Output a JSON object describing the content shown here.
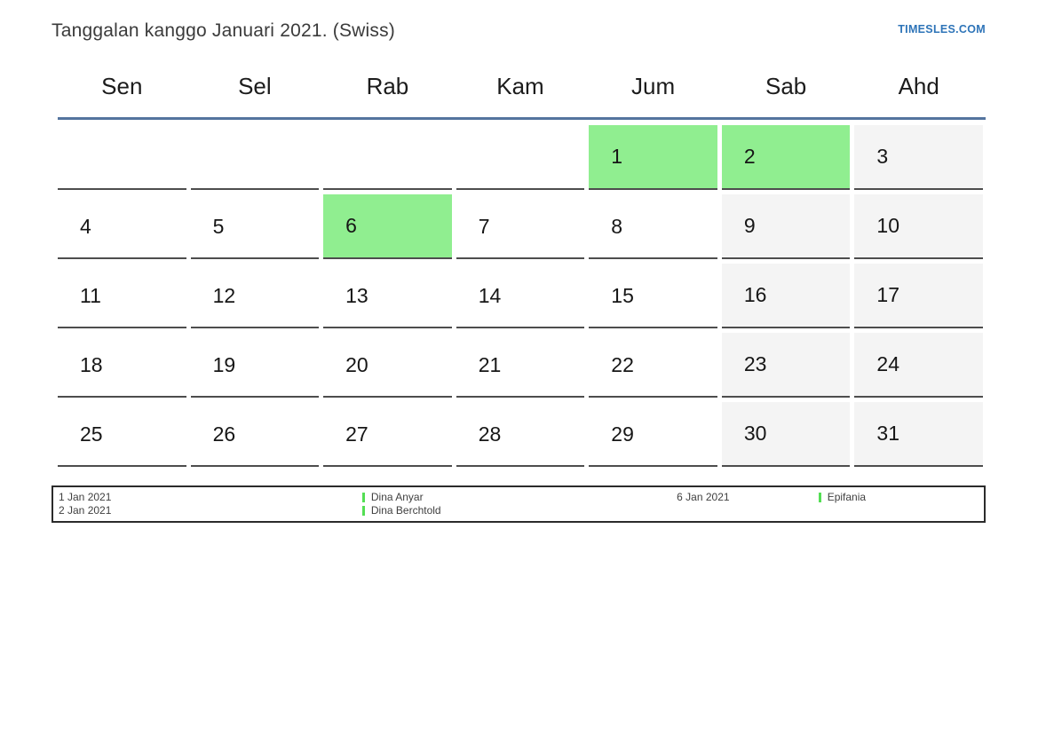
{
  "header": {
    "title": "Tanggalan kanggo Januari 2021. (Swiss)",
    "site_link": "TIMESLES.COM"
  },
  "calendar": {
    "weekday_headers": [
      "Sen",
      "Sel",
      "Rab",
      "Kam",
      "Jum",
      "Sab",
      "Ahd"
    ],
    "weeks": [
      [
        {
          "day": "",
          "type": "empty"
        },
        {
          "day": "",
          "type": "empty"
        },
        {
          "day": "",
          "type": "empty"
        },
        {
          "day": "",
          "type": "empty"
        },
        {
          "day": "1",
          "type": "holiday"
        },
        {
          "day": "2",
          "type": "holiday"
        },
        {
          "day": "3",
          "type": "weekend"
        }
      ],
      [
        {
          "day": "4",
          "type": "weekday"
        },
        {
          "day": "5",
          "type": "weekday"
        },
        {
          "day": "6",
          "type": "holiday"
        },
        {
          "day": "7",
          "type": "weekday"
        },
        {
          "day": "8",
          "type": "weekday"
        },
        {
          "day": "9",
          "type": "weekend"
        },
        {
          "day": "10",
          "type": "weekend"
        }
      ],
      [
        {
          "day": "11",
          "type": "weekday"
        },
        {
          "day": "12",
          "type": "weekday"
        },
        {
          "day": "13",
          "type": "weekday"
        },
        {
          "day": "14",
          "type": "weekday"
        },
        {
          "day": "15",
          "type": "weekday"
        },
        {
          "day": "16",
          "type": "weekend"
        },
        {
          "day": "17",
          "type": "weekend"
        }
      ],
      [
        {
          "day": "18",
          "type": "weekday"
        },
        {
          "day": "19",
          "type": "weekday"
        },
        {
          "day": "20",
          "type": "weekday"
        },
        {
          "day": "21",
          "type": "weekday"
        },
        {
          "day": "22",
          "type": "weekday"
        },
        {
          "day": "23",
          "type": "weekend"
        },
        {
          "day": "24",
          "type": "weekend"
        }
      ],
      [
        {
          "day": "25",
          "type": "weekday"
        },
        {
          "day": "26",
          "type": "weekday"
        },
        {
          "day": "27",
          "type": "weekday"
        },
        {
          "day": "28",
          "type": "weekday"
        },
        {
          "day": "29",
          "type": "weekday"
        },
        {
          "day": "30",
          "type": "weekend"
        },
        {
          "day": "31",
          "type": "weekend"
        }
      ]
    ]
  },
  "legend": {
    "groups": [
      {
        "entries": [
          {
            "date": "1 Jan 2021",
            "name": "Dina Anyar"
          },
          {
            "date": "2 Jan 2021",
            "name": "Dina Berchtold"
          }
        ]
      },
      {
        "entries": [
          {
            "date": "6 Jan 2021",
            "name": "Epifania"
          }
        ]
      }
    ]
  },
  "colors": {
    "holiday": "#90ee90",
    "weekend": "#f4f4f4",
    "header_line": "#54749e",
    "cell_border": "#4d4d4d",
    "link": "#2e74b8",
    "legend_marker": "#54de54"
  }
}
